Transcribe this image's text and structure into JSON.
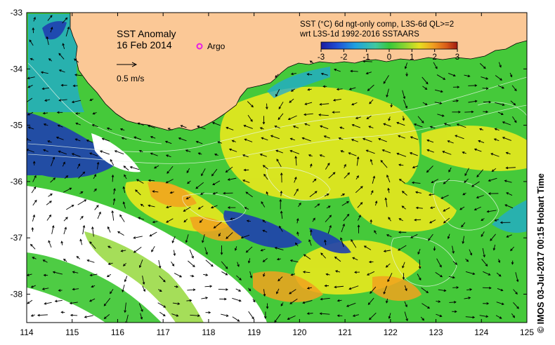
{
  "map": {
    "title": "SST Anomaly",
    "date": "16 Feb 2014",
    "argo_label": "Argo",
    "scale_label": "0.5 m/s",
    "colorbar": {
      "title_line1": "SST (°C) 6d ngt-only comp, L3S-6d QL>=2",
      "title_line2": "wrt L3S-1d 1992-2016 SSTAARS",
      "ticks": [
        "-3",
        "-2",
        "-1",
        "0",
        "1",
        "2",
        "3"
      ],
      "colors": [
        "#1a1aa0",
        "#1f4fd6",
        "#1fa0e0",
        "#3fc9a0",
        "#36c83a",
        "#8fd630",
        "#e6e020",
        "#f0a020",
        "#d95a18",
        "#a01a10"
      ]
    },
    "x_ticks": [
      "114",
      "115",
      "116",
      "117",
      "118",
      "119",
      "120",
      "121",
      "122",
      "123",
      "124",
      "125"
    ],
    "y_ticks": [
      "-33",
      "-34",
      "-35",
      "-36",
      "-37",
      "-38"
    ],
    "credit": "© IMOS 03-Jul-2017 00:15 Hobart Time",
    "colors": {
      "land": "#fbc896",
      "no_data": "#ffffff",
      "sea_main": "#45c93a",
      "anomaly_warm": "#e8e81e",
      "anomaly_hot": "#f2a21e",
      "anomaly_cold": "#1e3fb0",
      "anomaly_cool": "#1fa8d6",
      "argo_marker": "#e61ee6"
    }
  }
}
